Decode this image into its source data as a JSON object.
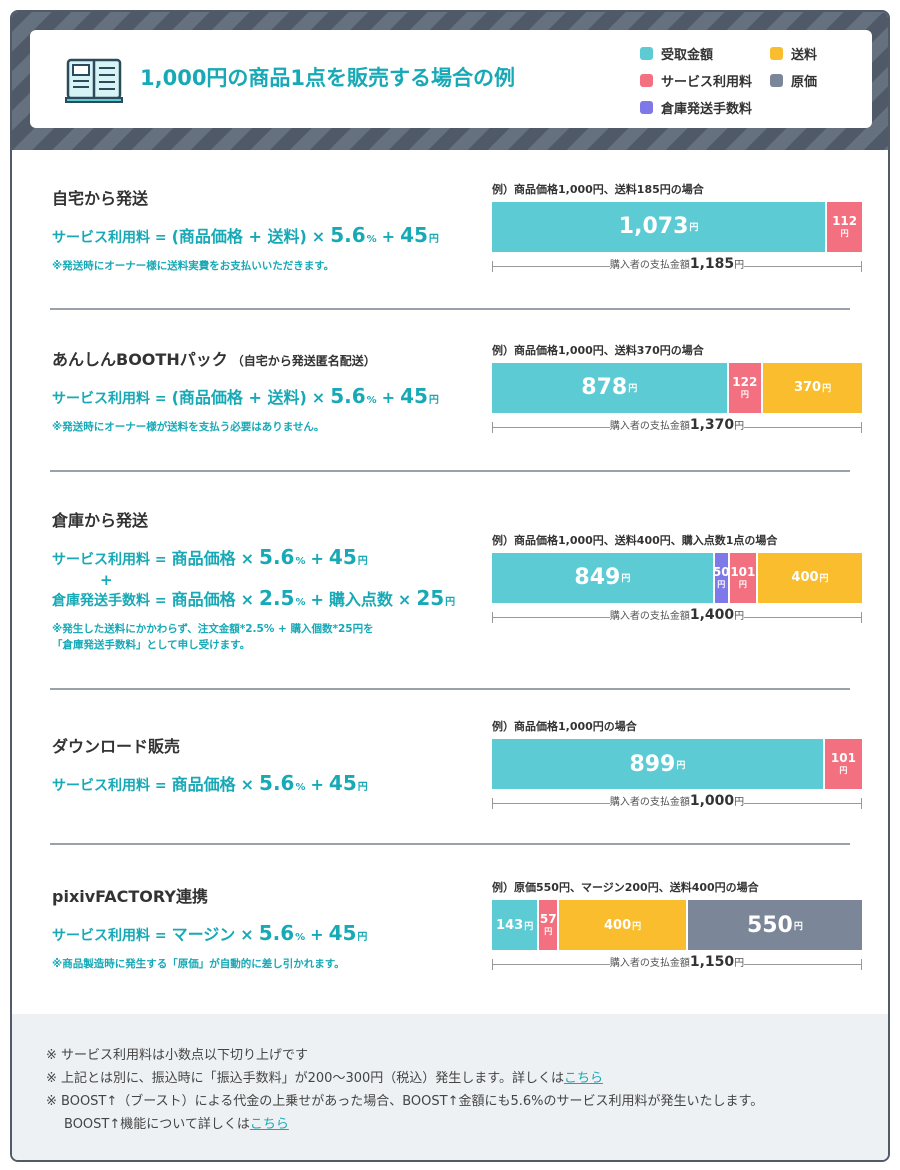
{
  "header": {
    "title": "1,000円の商品1点を販売する場合の例"
  },
  "legend": [
    {
      "name": "受取金額",
      "color": "#5ccbd3"
    },
    {
      "name": "送料",
      "color": "#f9bd2e"
    },
    {
      "name": "サービス利用料",
      "color": "#f2707f"
    },
    {
      "name": "原価",
      "color": "#7b8799"
    },
    {
      "name": "倉庫発送手数料",
      "color": "#7f78e8"
    }
  ],
  "unit": "円",
  "sections": [
    {
      "title": "自宅から発送",
      "formulas": [
        [
          "サービス利用料 =",
          "(商品価格 + 送料)",
          "×",
          "5.6",
          "%",
          "+",
          "45",
          "円"
        ]
      ],
      "note": [
        "※発送時にオーナー様に送料実費をお支払いいただきます。"
      ],
      "example": {
        "caption": "例）商品価格1,000円、送料185円の場合",
        "segments": [
          {
            "value": 1073,
            "label": "1,073",
            "color": "#5ccbd3"
          },
          {
            "value": 112,
            "label": "112",
            "color": "#f2707f"
          }
        ],
        "total": {
          "prefix": "購入者の支払金額",
          "value": 1185,
          "label": "1,185"
        }
      }
    },
    {
      "title": "あんしんBOOTHパック",
      "subtitle": "（自宅から発送匿名配送）",
      "formulas": [
        [
          "サービス利用料 =",
          "(商品価格 + 送料)",
          "×",
          "5.6",
          "%",
          "+",
          "45",
          "円"
        ]
      ],
      "note": [
        "※発送時にオーナー様が送料を支払う必要はありません。"
      ],
      "example": {
        "caption": "例）商品価格1,000円、送料370円の場合",
        "segments": [
          {
            "value": 878,
            "label": "878",
            "color": "#5ccbd3"
          },
          {
            "value": 122,
            "label": "122",
            "color": "#f2707f"
          },
          {
            "value": 370,
            "label": "370",
            "color": "#f9bd2e"
          }
        ],
        "total": {
          "prefix": "購入者の支払金額",
          "value": 1370,
          "label": "1,370"
        }
      }
    },
    {
      "title": "倉庫から発送",
      "formulas": [
        [
          "サービス利用料 =",
          "商品価格",
          "×",
          "5.6",
          "%",
          "+",
          "45",
          "円"
        ],
        [
          "倉庫発送手数料 =",
          "商品価格",
          "×",
          "2.5",
          "%",
          "+",
          "購入点数",
          "×",
          "25",
          "円"
        ]
      ],
      "formula_joiner": "+",
      "note": [
        "※発生した送料にかかわらず、注文金額*2.5% + 購入個数*25円を",
        "「倉庫発送手数料」として申し受けます。"
      ],
      "example": {
        "caption": "例）商品価格1,000円、送料400円、購入点数1点の場合",
        "segments": [
          {
            "value": 849,
            "label": "849",
            "color": "#5ccbd3"
          },
          {
            "value": 50,
            "label": "50",
            "color": "#7f78e8"
          },
          {
            "value": 101,
            "label": "101",
            "color": "#f2707f"
          },
          {
            "value": 400,
            "label": "400",
            "color": "#f9bd2e"
          }
        ],
        "total": {
          "prefix": "購入者の支払金額",
          "value": 1400,
          "label": "1,400"
        }
      }
    },
    {
      "title": "ダウンロード販売",
      "formulas": [
        [
          "サービス利用料 =",
          "商品価格",
          "×",
          "5.6",
          "%",
          "+",
          "45",
          "円"
        ]
      ],
      "example": {
        "caption": "例）商品価格1,000円の場合",
        "segments": [
          {
            "value": 899,
            "label": "899",
            "color": "#5ccbd3"
          },
          {
            "value": 101,
            "label": "101",
            "color": "#f2707f"
          }
        ],
        "total": {
          "prefix": "購入者の支払金額",
          "value": 1000,
          "label": "1,000"
        }
      }
    },
    {
      "title": "pixivFACTORY連携",
      "formulas": [
        [
          "サービス利用料 =",
          "マージン",
          "×",
          "5.6",
          "%",
          "+",
          "45",
          "円"
        ]
      ],
      "note": [
        "※商品製造時に発生する「原価」が自動的に差し引かれます。"
      ],
      "example": {
        "caption": "例）原価550円、マージン200円、送料400円の場合",
        "segments": [
          {
            "value": 143,
            "label": "143",
            "color": "#5ccbd3"
          },
          {
            "value": 57,
            "label": "57",
            "color": "#f2707f"
          },
          {
            "value": 400,
            "label": "400",
            "color": "#f9bd2e"
          },
          {
            "value": 550,
            "label": "550",
            "color": "#7b8799"
          }
        ],
        "total": {
          "prefix": "購入者の支払金額",
          "value": 1150,
          "label": "1,150"
        }
      }
    }
  ],
  "footer": {
    "notes": [
      {
        "lines": [
          {
            "text": "※ サービス利用料は小数点以下切り上げです"
          }
        ]
      },
      {
        "lines": [
          {
            "text": "※ 上記とは別に、振込時に「振込手数料」が200〜300円（税込）発生します。詳しくは",
            "link": "こちら"
          }
        ]
      },
      {
        "lines": [
          {
            "text": "※ BOOST↑（ブースト）による代金の上乗せがあった場合、BOOST↑金額にも5.6%のサービス利用料が発生いたします。"
          },
          {
            "text": "BOOST↑機能について詳しくは",
            "link": "こちら"
          }
        ]
      }
    ]
  }
}
